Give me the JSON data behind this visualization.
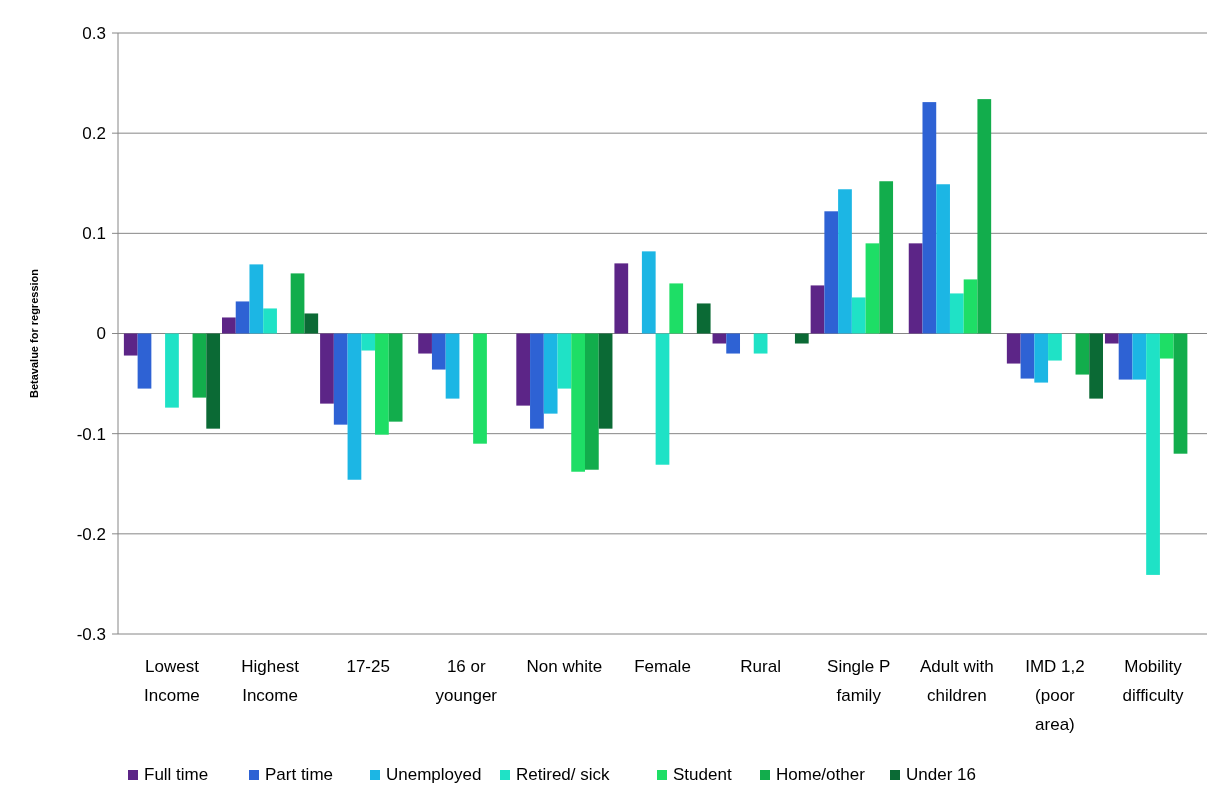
{
  "chart_data": {
    "type": "bar",
    "ylabel": "Betavalue for regression",
    "categories": [
      "Lowest Income",
      "Highest Income",
      "17-25",
      "16 or younger",
      "Non white",
      "Female",
      "Rural",
      "Single P family",
      "Adult with children",
      "IMD 1,2 (poor area)",
      "Mobility difficulty"
    ],
    "series": [
      {
        "name": "Full time",
        "color": "#5c2587",
        "values": [
          -0.022,
          0.016,
          -0.07,
          -0.02,
          -0.072,
          0.07,
          -0.01,
          0.048,
          0.09,
          -0.03,
          -0.01
        ]
      },
      {
        "name": "Part time",
        "color": "#2e62d4",
        "values": [
          -0.055,
          0.032,
          -0.091,
          -0.036,
          -0.095,
          null,
          -0.02,
          0.122,
          0.231,
          -0.045,
          -0.046
        ]
      },
      {
        "name": "Unemployed",
        "color": "#1cb6e4",
        "values": [
          null,
          0.069,
          -0.146,
          -0.065,
          -0.08,
          0.082,
          null,
          0.144,
          0.149,
          -0.049,
          -0.046
        ]
      },
      {
        "name": "Retired/ sick",
        "color": "#1fe2c6",
        "values": [
          -0.074,
          0.025,
          -0.017,
          null,
          -0.055,
          -0.131,
          -0.02,
          0.036,
          0.04,
          -0.027,
          -0.241
        ]
      },
      {
        "name": "Student",
        "color": "#1ede66",
        "values": [
          null,
          null,
          -0.101,
          -0.11,
          -0.138,
          0.05,
          null,
          0.09,
          0.054,
          null,
          -0.025
        ]
      },
      {
        "name": "Home/other",
        "color": "#12ad4c",
        "values": [
          -0.064,
          0.06,
          -0.088,
          null,
          -0.136,
          null,
          null,
          0.152,
          0.234,
          -0.041,
          -0.12
        ]
      },
      {
        "name": "Under 16",
        "color": "#0b6a35",
        "values": [
          -0.095,
          0.02,
          null,
          null,
          -0.095,
          0.03,
          -0.01,
          null,
          null,
          -0.065,
          null
        ]
      }
    ],
    "ylim": [
      -0.3,
      0.3
    ],
    "yticks": [
      -0.3,
      -0.2,
      -0.1,
      0,
      0.1,
      0.2,
      0.3
    ],
    "grid": "y",
    "legend": "bottom"
  }
}
